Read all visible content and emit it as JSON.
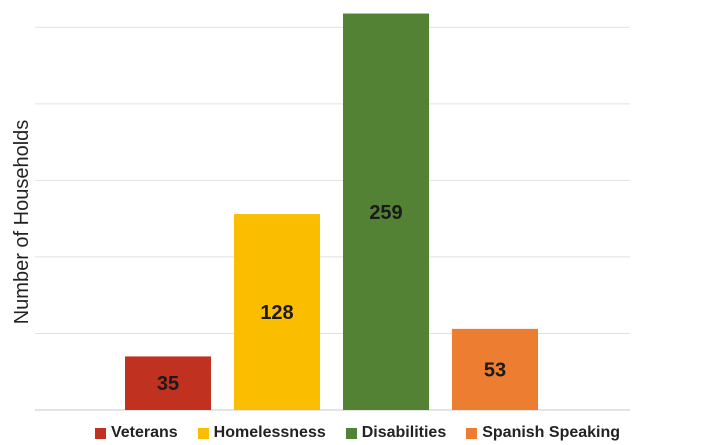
{
  "chart_data": {
    "type": "bar",
    "title": "",
    "xlabel": "",
    "ylabel": "Number of Households",
    "ylim": [
      0,
      260
    ],
    "grid": true,
    "legend": "bottom",
    "categories": [
      "Veterans",
      "Homelessness",
      "Disabilities",
      "Spanish Speaking"
    ],
    "values": [
      35,
      128,
      259,
      53
    ],
    "colors": [
      "#c0321f",
      "#fbbd00",
      "#548235",
      "#ed7d31"
    ]
  }
}
